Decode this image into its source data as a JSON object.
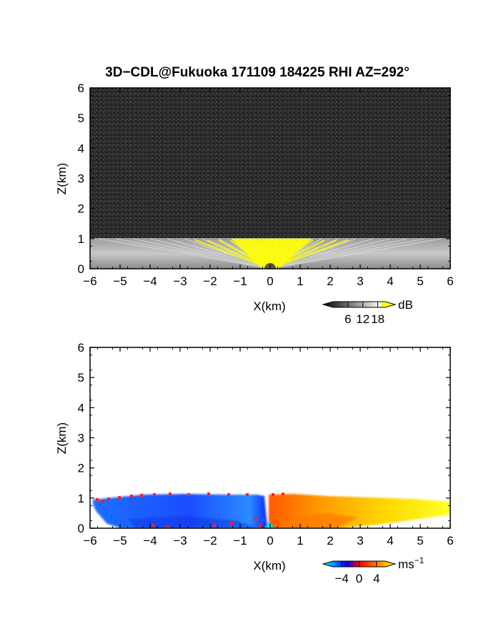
{
  "title": "3D−CDL@Fukuoka 171109 184225 RHI AZ=292°",
  "chart_data": [
    {
      "type": "heatmap",
      "panel": "top",
      "xlabel": "X(km)",
      "ylabel": "Z(km)",
      "xlim": [
        -6,
        6
      ],
      "ylim": [
        0,
        6
      ],
      "xticks": [
        -6,
        -5,
        -4,
        -3,
        -2,
        -1,
        0,
        1,
        2,
        3,
        4,
        5,
        6
      ],
      "yticks": [
        0,
        1,
        2,
        3,
        4,
        5,
        6
      ],
      "field": "SNR",
      "colorscale": "grayscale + yellow above 18 dB",
      "background_color": "#2b2b2b",
      "echo_top_km": 1.0,
      "strong_echo_x_range_km": [
        -1.3,
        1.4
      ],
      "colorbar": {
        "unit": "dB",
        "ticks": [
          "6",
          "12",
          "18"
        ],
        "tick_values": [
          6,
          12,
          18
        ],
        "range": [
          0,
          21
        ],
        "colors": [
          "#000000",
          "#ffffff",
          "#ffff00"
        ]
      }
    },
    {
      "type": "heatmap",
      "panel": "bottom",
      "xlabel": "X(km)",
      "ylabel": "Z(km)",
      "xlim": [
        -6,
        6
      ],
      "ylim": [
        0,
        6
      ],
      "xticks": [
        -6,
        -5,
        -4,
        -3,
        -2,
        -1,
        0,
        1,
        2,
        3,
        4,
        5,
        6
      ],
      "yticks": [
        0,
        1,
        2,
        3,
        4,
        5,
        6
      ],
      "field": "Doppler velocity",
      "echo_top_km": 1.0,
      "negative_side_x_km": [
        -6,
        0
      ],
      "positive_side_x_km": [
        0,
        6
      ],
      "colorbar": {
        "unit": "ms",
        "unit_superscript": "−1",
        "ticks": [
          "−4",
          "0",
          "4"
        ],
        "tick_values": [
          -4,
          0,
          4
        ],
        "range": [
          -6,
          6
        ],
        "colors": [
          "#00ffff",
          "#0000ff",
          "#ff0000",
          "#ffff00"
        ]
      }
    }
  ]
}
